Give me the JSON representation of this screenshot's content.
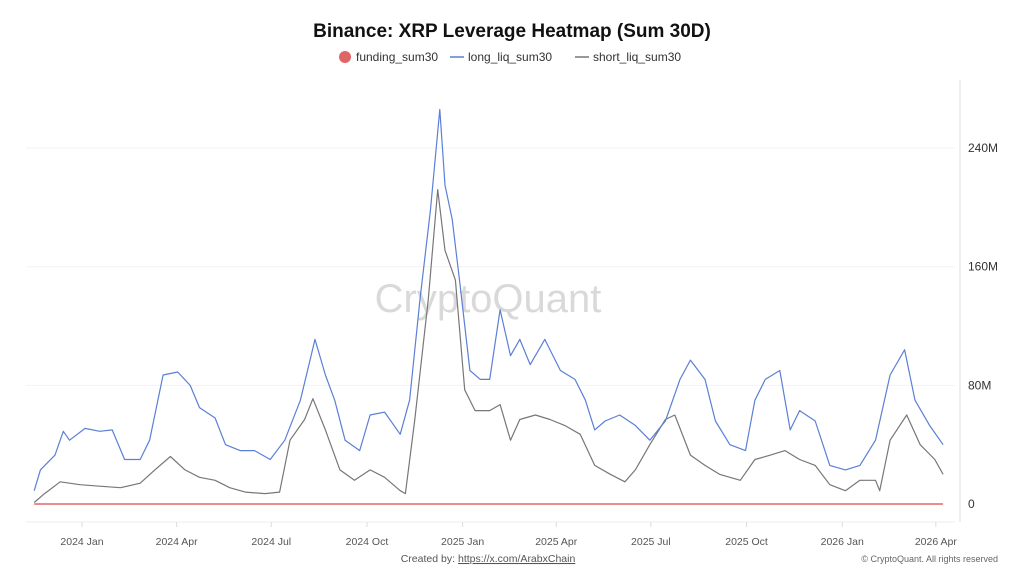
{
  "chart_data": {
    "type": "line",
    "title": "Binance: XRP Leverage Heatmap (Sum 30D)",
    "legend_position": "top",
    "grid": true,
    "ylim": [
      0,
      280
    ],
    "y_unit": "M",
    "yticks": [
      {
        "v": 0,
        "label": "0"
      },
      {
        "v": 80,
        "label": "80M"
      },
      {
        "v": 160,
        "label": "160M"
      },
      {
        "v": 240,
        "label": "240M"
      }
    ],
    "xticks": [
      {
        "d": "2024-01-01",
        "label": "2024 Jan"
      },
      {
        "d": "2024-04-01",
        "label": "2024 Apr"
      },
      {
        "d": "2024-07-01",
        "label": "2024 Jul"
      },
      {
        "d": "2024-10-01",
        "label": "2024 Oct"
      },
      {
        "d": "2025-01-01",
        "label": "2025 Jan"
      },
      {
        "d": "2025-04-01",
        "label": "2025 Apr"
      },
      {
        "d": "2025-07-01",
        "label": "2025 Jul"
      },
      {
        "d": "2025-10-01",
        "label": "2025 Oct"
      },
      {
        "d": "2026-01-01",
        "label": "2026 Jan"
      },
      {
        "d": "2026-04-01",
        "label": "2026 Apr"
      }
    ],
    "series": [
      {
        "name": "funding_sum30",
        "color": "#e06666",
        "marker": "circle",
        "points": [
          [
            "2023-11-16",
            0
          ],
          [
            "2026-04-08",
            0
          ]
        ]
      },
      {
        "name": "long_liq_sum30",
        "color": "#5b7fd6",
        "marker": "line",
        "points": [
          [
            "2023-11-16",
            9
          ],
          [
            "2023-11-22",
            23
          ],
          [
            "2023-12-06",
            33
          ],
          [
            "2023-12-14",
            49
          ],
          [
            "2023-12-20",
            43
          ],
          [
            "2024-01-04",
            51
          ],
          [
            "2024-01-18",
            49
          ],
          [
            "2024-01-30",
            50
          ],
          [
            "2024-02-11",
            30
          ],
          [
            "2024-02-26",
            30
          ],
          [
            "2024-03-06",
            43
          ],
          [
            "2024-03-19",
            87
          ],
          [
            "2024-04-02",
            89
          ],
          [
            "2024-04-14",
            80
          ],
          [
            "2024-04-23",
            65
          ],
          [
            "2024-05-08",
            58
          ],
          [
            "2024-05-18",
            40
          ],
          [
            "2024-06-01",
            36
          ],
          [
            "2024-06-15",
            36
          ],
          [
            "2024-06-30",
            30
          ],
          [
            "2024-07-14",
            43
          ],
          [
            "2024-07-29",
            70
          ],
          [
            "2024-08-12",
            111
          ],
          [
            "2024-08-22",
            87
          ],
          [
            "2024-08-31",
            70
          ],
          [
            "2024-09-10",
            43
          ],
          [
            "2024-09-24",
            36
          ],
          [
            "2024-10-04",
            60
          ],
          [
            "2024-10-18",
            62
          ],
          [
            "2024-11-02",
            47
          ],
          [
            "2024-11-11",
            70
          ],
          [
            "2024-11-21",
            138
          ],
          [
            "2024-12-01",
            198
          ],
          [
            "2024-12-10",
            266
          ],
          [
            "2024-12-15",
            215
          ],
          [
            "2024-12-22",
            192
          ],
          [
            "2024-12-29",
            151
          ],
          [
            "2025-01-08",
            90
          ],
          [
            "2025-01-18",
            84
          ],
          [
            "2025-01-27",
            84
          ],
          [
            "2025-02-06",
            131
          ],
          [
            "2025-02-16",
            100
          ],
          [
            "2025-02-25",
            111
          ],
          [
            "2025-03-07",
            94
          ],
          [
            "2025-03-21",
            111
          ],
          [
            "2025-04-05",
            90
          ],
          [
            "2025-04-19",
            84
          ],
          [
            "2025-04-29",
            70
          ],
          [
            "2025-05-08",
            50
          ],
          [
            "2025-05-18",
            56
          ],
          [
            "2025-06-01",
            60
          ],
          [
            "2025-06-16",
            53
          ],
          [
            "2025-06-30",
            43
          ],
          [
            "2025-07-15",
            56
          ],
          [
            "2025-07-29",
            84
          ],
          [
            "2025-08-08",
            97
          ],
          [
            "2025-08-22",
            84
          ],
          [
            "2025-09-01",
            56
          ],
          [
            "2025-09-15",
            40
          ],
          [
            "2025-09-30",
            36
          ],
          [
            "2025-10-09",
            70
          ],
          [
            "2025-10-19",
            84
          ],
          [
            "2025-11-02",
            90
          ],
          [
            "2025-11-12",
            50
          ],
          [
            "2025-11-21",
            63
          ],
          [
            "2025-12-06",
            56
          ],
          [
            "2025-12-20",
            26
          ],
          [
            "2026-01-04",
            23
          ],
          [
            "2026-01-18",
            26
          ],
          [
            "2026-02-02",
            43
          ],
          [
            "2026-02-16",
            87
          ],
          [
            "2026-03-02",
            104
          ],
          [
            "2026-03-12",
            70
          ],
          [
            "2026-03-26",
            53
          ],
          [
            "2026-04-08",
            40
          ]
        ]
      },
      {
        "name": "short_liq_sum30",
        "color": "#777777",
        "marker": "line",
        "points": [
          [
            "2023-11-16",
            1
          ],
          [
            "2023-11-26",
            7
          ],
          [
            "2023-12-11",
            15
          ],
          [
            "2023-12-30",
            13
          ],
          [
            "2024-01-18",
            12
          ],
          [
            "2024-02-07",
            11
          ],
          [
            "2024-02-26",
            14
          ],
          [
            "2024-03-11",
            23
          ],
          [
            "2024-03-26",
            32
          ],
          [
            "2024-04-09",
            23
          ],
          [
            "2024-04-23",
            18
          ],
          [
            "2024-05-08",
            16
          ],
          [
            "2024-05-22",
            11
          ],
          [
            "2024-06-06",
            8
          ],
          [
            "2024-06-25",
            7
          ],
          [
            "2024-07-09",
            8
          ],
          [
            "2024-07-19",
            43
          ],
          [
            "2024-08-02",
            57
          ],
          [
            "2024-08-10",
            71
          ],
          [
            "2024-08-22",
            50
          ],
          [
            "2024-09-05",
            23
          ],
          [
            "2024-09-19",
            16
          ],
          [
            "2024-10-04",
            23
          ],
          [
            "2024-10-18",
            18
          ],
          [
            "2024-11-02",
            9
          ],
          [
            "2024-11-07",
            7
          ],
          [
            "2024-11-16",
            57
          ],
          [
            "2024-11-29",
            138
          ],
          [
            "2024-12-08",
            212
          ],
          [
            "2024-12-15",
            171
          ],
          [
            "2024-12-25",
            151
          ],
          [
            "2025-01-03",
            77
          ],
          [
            "2025-01-13",
            63
          ],
          [
            "2025-01-27",
            63
          ],
          [
            "2025-02-06",
            67
          ],
          [
            "2025-02-16",
            43
          ],
          [
            "2025-02-25",
            57
          ],
          [
            "2025-03-12",
            60
          ],
          [
            "2025-03-26",
            57
          ],
          [
            "2025-04-09",
            53
          ],
          [
            "2025-04-24",
            47
          ],
          [
            "2025-05-08",
            26
          ],
          [
            "2025-05-23",
            20
          ],
          [
            "2025-06-06",
            15
          ],
          [
            "2025-06-16",
            23
          ],
          [
            "2025-06-30",
            40
          ],
          [
            "2025-07-15",
            57
          ],
          [
            "2025-07-24",
            60
          ],
          [
            "2025-08-08",
            33
          ],
          [
            "2025-08-22",
            26
          ],
          [
            "2025-09-05",
            20
          ],
          [
            "2025-09-25",
            16
          ],
          [
            "2025-10-09",
            30
          ],
          [
            "2025-10-24",
            33
          ],
          [
            "2025-11-07",
            36
          ],
          [
            "2025-11-21",
            30
          ],
          [
            "2025-12-06",
            26
          ],
          [
            "2025-12-20",
            13
          ],
          [
            "2026-01-04",
            9
          ],
          [
            "2026-01-18",
            16
          ],
          [
            "2026-02-02",
            16
          ],
          [
            "2026-02-06",
            9
          ],
          [
            "2026-02-16",
            43
          ],
          [
            "2026-03-04",
            60
          ],
          [
            "2026-03-17",
            40
          ],
          [
            "2026-03-31",
            30
          ],
          [
            "2026-04-08",
            20
          ]
        ]
      }
    ]
  },
  "watermark": "CryptoQuant",
  "footer": {
    "created_by": "Created by:",
    "link": "https://x.com/ArabxChain",
    "copyright": "© CryptoQuant. All rights reserved"
  }
}
